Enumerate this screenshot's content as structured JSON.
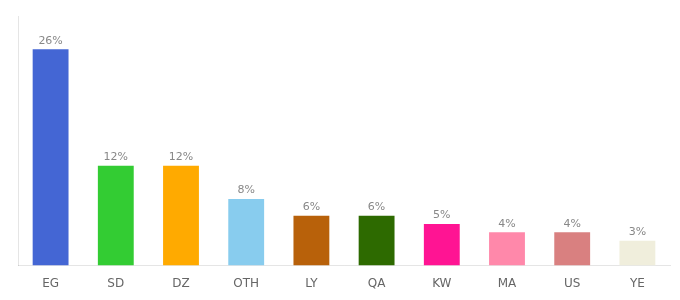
{
  "chart_data": {
    "type": "bar",
    "categories": [
      "EG",
      "SD",
      "DZ",
      "OTH",
      "LY",
      "QA",
      "KW",
      "MA",
      "US",
      "YE"
    ],
    "values": [
      26,
      12,
      12,
      8,
      6,
      6,
      5,
      4,
      4,
      3
    ],
    "value_labels": [
      "26%",
      "12%",
      "12%",
      "8%",
      "6%",
      "6%",
      "5%",
      "4%",
      "4%",
      "3%"
    ],
    "colors": [
      "#4466d4",
      "#33cc33",
      "#ffaa00",
      "#88ccee",
      "#b8610a",
      "#2d6a00",
      "#ff1493",
      "#ff88aa",
      "#d98080",
      "#f0eedc"
    ],
    "ylim": [
      0,
      30
    ],
    "grid": false,
    "data_labels": true,
    "tick_labels": "x"
  }
}
